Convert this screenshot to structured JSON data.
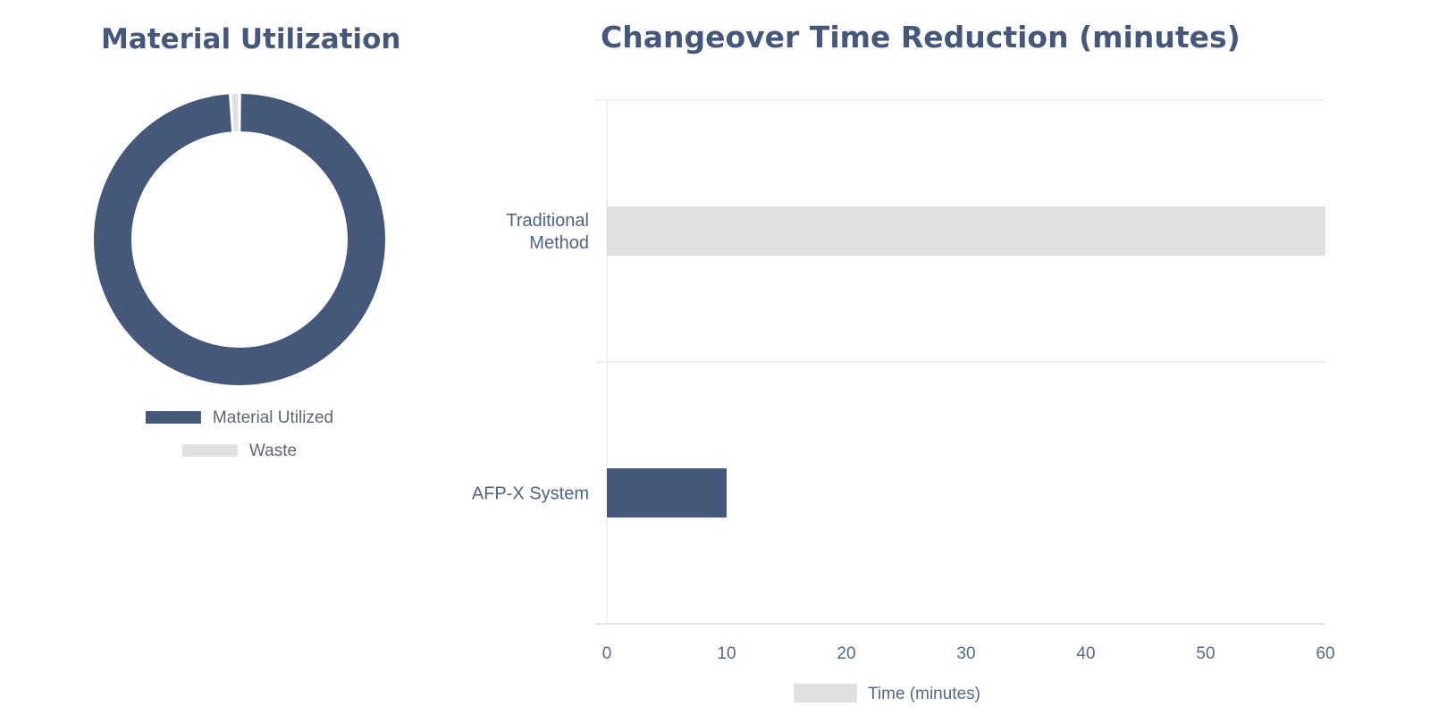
{
  "colors": {
    "primary": "#46587a",
    "secondary": "#e0e0e0",
    "grid": "#ebebeb",
    "title": "#46587a"
  },
  "chart_data": [
    {
      "type": "pie",
      "variant": "donut",
      "title": "Material Utilization",
      "categories": [
        "Material Utilized",
        "Waste"
      ],
      "values": [
        99,
        1
      ],
      "colors": [
        "#46587a",
        "#e0e0e0"
      ],
      "legend": "bottom"
    },
    {
      "type": "bar",
      "orientation": "horizontal",
      "title": "Changeover Time Reduction (minutes)",
      "categories": [
        "Traditional Method",
        "AFP-X System"
      ],
      "category_lines": [
        [
          "Traditional",
          "Method"
        ],
        [
          "AFP-X System"
        ]
      ],
      "values": [
        60,
        10
      ],
      "colors": [
        "#e0e0e0",
        "#46587a"
      ],
      "series": [
        {
          "name": "Time (minutes)",
          "values": [
            60,
            10
          ]
        }
      ],
      "xlim": [
        0,
        60
      ],
      "xticks": [
        0,
        10,
        20,
        30,
        40,
        50,
        60
      ],
      "xlabel": "",
      "ylabel": "",
      "grid": true,
      "legend": "bottom"
    }
  ]
}
